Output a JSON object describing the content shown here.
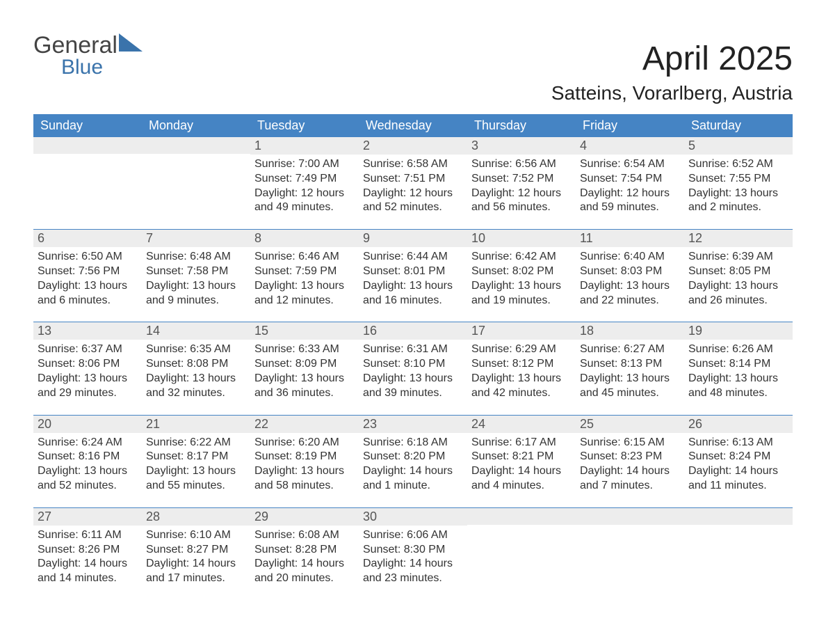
{
  "brand": {
    "word1": "General",
    "word2": "Blue",
    "color_general": "#444444",
    "color_blue": "#3a73ab",
    "triangle_color": "#3a73ab"
  },
  "title": "April 2025",
  "location": "Satteins, Vorarlberg, Austria",
  "colors": {
    "accent": "#4584c4",
    "daynum_bg": "#ededed",
    "text": "#333333",
    "background": "#ffffff"
  },
  "dow": [
    "Sunday",
    "Monday",
    "Tuesday",
    "Wednesday",
    "Thursday",
    "Friday",
    "Saturday"
  ],
  "weeks": [
    [
      null,
      null,
      {
        "n": "1",
        "sunrise": "Sunrise: 7:00 AM",
        "sunset": "Sunset: 7:49 PM",
        "daylight": "Daylight: 12 hours and 49 minutes."
      },
      {
        "n": "2",
        "sunrise": "Sunrise: 6:58 AM",
        "sunset": "Sunset: 7:51 PM",
        "daylight": "Daylight: 12 hours and 52 minutes."
      },
      {
        "n": "3",
        "sunrise": "Sunrise: 6:56 AM",
        "sunset": "Sunset: 7:52 PM",
        "daylight": "Daylight: 12 hours and 56 minutes."
      },
      {
        "n": "4",
        "sunrise": "Sunrise: 6:54 AM",
        "sunset": "Sunset: 7:54 PM",
        "daylight": "Daylight: 12 hours and 59 minutes."
      },
      {
        "n": "5",
        "sunrise": "Sunrise: 6:52 AM",
        "sunset": "Sunset: 7:55 PM",
        "daylight": "Daylight: 13 hours and 2 minutes."
      }
    ],
    [
      {
        "n": "6",
        "sunrise": "Sunrise: 6:50 AM",
        "sunset": "Sunset: 7:56 PM",
        "daylight": "Daylight: 13 hours and 6 minutes."
      },
      {
        "n": "7",
        "sunrise": "Sunrise: 6:48 AM",
        "sunset": "Sunset: 7:58 PM",
        "daylight": "Daylight: 13 hours and 9 minutes."
      },
      {
        "n": "8",
        "sunrise": "Sunrise: 6:46 AM",
        "sunset": "Sunset: 7:59 PM",
        "daylight": "Daylight: 13 hours and 12 minutes."
      },
      {
        "n": "9",
        "sunrise": "Sunrise: 6:44 AM",
        "sunset": "Sunset: 8:01 PM",
        "daylight": "Daylight: 13 hours and 16 minutes."
      },
      {
        "n": "10",
        "sunrise": "Sunrise: 6:42 AM",
        "sunset": "Sunset: 8:02 PM",
        "daylight": "Daylight: 13 hours and 19 minutes."
      },
      {
        "n": "11",
        "sunrise": "Sunrise: 6:40 AM",
        "sunset": "Sunset: 8:03 PM",
        "daylight": "Daylight: 13 hours and 22 minutes."
      },
      {
        "n": "12",
        "sunrise": "Sunrise: 6:39 AM",
        "sunset": "Sunset: 8:05 PM",
        "daylight": "Daylight: 13 hours and 26 minutes."
      }
    ],
    [
      {
        "n": "13",
        "sunrise": "Sunrise: 6:37 AM",
        "sunset": "Sunset: 8:06 PM",
        "daylight": "Daylight: 13 hours and 29 minutes."
      },
      {
        "n": "14",
        "sunrise": "Sunrise: 6:35 AM",
        "sunset": "Sunset: 8:08 PM",
        "daylight": "Daylight: 13 hours and 32 minutes."
      },
      {
        "n": "15",
        "sunrise": "Sunrise: 6:33 AM",
        "sunset": "Sunset: 8:09 PM",
        "daylight": "Daylight: 13 hours and 36 minutes."
      },
      {
        "n": "16",
        "sunrise": "Sunrise: 6:31 AM",
        "sunset": "Sunset: 8:10 PM",
        "daylight": "Daylight: 13 hours and 39 minutes."
      },
      {
        "n": "17",
        "sunrise": "Sunrise: 6:29 AM",
        "sunset": "Sunset: 8:12 PM",
        "daylight": "Daylight: 13 hours and 42 minutes."
      },
      {
        "n": "18",
        "sunrise": "Sunrise: 6:27 AM",
        "sunset": "Sunset: 8:13 PM",
        "daylight": "Daylight: 13 hours and 45 minutes."
      },
      {
        "n": "19",
        "sunrise": "Sunrise: 6:26 AM",
        "sunset": "Sunset: 8:14 PM",
        "daylight": "Daylight: 13 hours and 48 minutes."
      }
    ],
    [
      {
        "n": "20",
        "sunrise": "Sunrise: 6:24 AM",
        "sunset": "Sunset: 8:16 PM",
        "daylight": "Daylight: 13 hours and 52 minutes."
      },
      {
        "n": "21",
        "sunrise": "Sunrise: 6:22 AM",
        "sunset": "Sunset: 8:17 PM",
        "daylight": "Daylight: 13 hours and 55 minutes."
      },
      {
        "n": "22",
        "sunrise": "Sunrise: 6:20 AM",
        "sunset": "Sunset: 8:19 PM",
        "daylight": "Daylight: 13 hours and 58 minutes."
      },
      {
        "n": "23",
        "sunrise": "Sunrise: 6:18 AM",
        "sunset": "Sunset: 8:20 PM",
        "daylight": "Daylight: 14 hours and 1 minute."
      },
      {
        "n": "24",
        "sunrise": "Sunrise: 6:17 AM",
        "sunset": "Sunset: 8:21 PM",
        "daylight": "Daylight: 14 hours and 4 minutes."
      },
      {
        "n": "25",
        "sunrise": "Sunrise: 6:15 AM",
        "sunset": "Sunset: 8:23 PM",
        "daylight": "Daylight: 14 hours and 7 minutes."
      },
      {
        "n": "26",
        "sunrise": "Sunrise: 6:13 AM",
        "sunset": "Sunset: 8:24 PM",
        "daylight": "Daylight: 14 hours and 11 minutes."
      }
    ],
    [
      {
        "n": "27",
        "sunrise": "Sunrise: 6:11 AM",
        "sunset": "Sunset: 8:26 PM",
        "daylight": "Daylight: 14 hours and 14 minutes."
      },
      {
        "n": "28",
        "sunrise": "Sunrise: 6:10 AM",
        "sunset": "Sunset: 8:27 PM",
        "daylight": "Daylight: 14 hours and 17 minutes."
      },
      {
        "n": "29",
        "sunrise": "Sunrise: 6:08 AM",
        "sunset": "Sunset: 8:28 PM",
        "daylight": "Daylight: 14 hours and 20 minutes."
      },
      {
        "n": "30",
        "sunrise": "Sunrise: 6:06 AM",
        "sunset": "Sunset: 8:30 PM",
        "daylight": "Daylight: 14 hours and 23 minutes."
      },
      null,
      null,
      null
    ]
  ]
}
